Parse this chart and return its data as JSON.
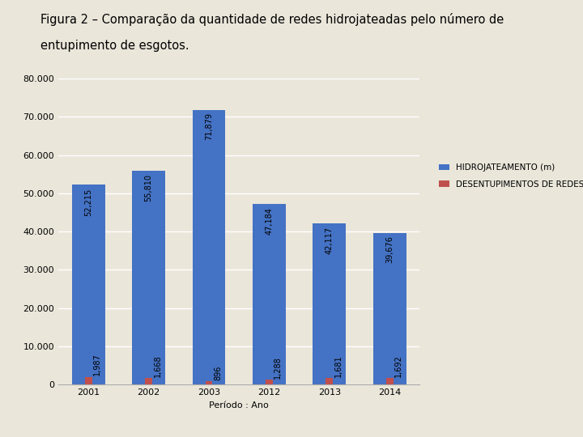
{
  "title_line1": "Figura 2 – Comparação da quantidade de redes hidrojateadas pelo número de",
  "title_line2": "entupimento de esgotos.",
  "categories": [
    "2001",
    "2002",
    "2003",
    "2012",
    "2013",
    "2014"
  ],
  "hidrojateamento": [
    52215,
    55810,
    71879,
    47184,
    42117,
    39676
  ],
  "desentupimentos": [
    1987,
    1668,
    896,
    1288,
    1681,
    1692
  ],
  "hidro_labels": [
    "52,215",
    "55,810",
    "71,879",
    "47,184",
    "42,117",
    "39,676"
  ],
  "desent_labels": [
    "1,987",
    "1,668",
    "896",
    "1,288",
    "1,681",
    "1,692"
  ],
  "xlabel": "Período : Ano",
  "ylim": [
    0,
    80000
  ],
  "yticks": [
    0,
    10000,
    20000,
    30000,
    40000,
    50000,
    60000,
    70000,
    80000
  ],
  "legend_hidro": "HIDROJATEAMENTO (m)",
  "legend_desent": "DESENTUPIMENTOS DE REDES (Unid.)",
  "color_hidro": "#4472C4",
  "color_desent": "#C0504D",
  "background_color": "#EAE6DA",
  "plot_background": "#EAE6DA",
  "title_fontsize": 10.5,
  "axis_fontsize": 8,
  "label_fontsize": 7,
  "bar_width": 0.55,
  "red_bar_width": 0.12,
  "grid_color": "#FFFFFF"
}
